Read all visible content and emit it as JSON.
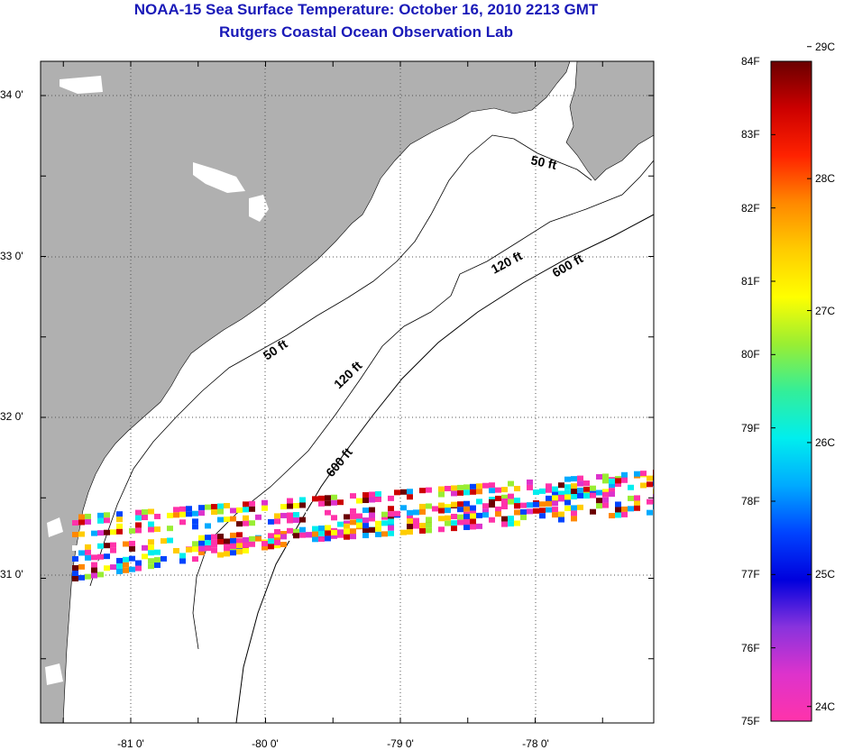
{
  "title": "NOAA-15 Sea Surface Temperature:  October 16, 2010 2213 GMT",
  "subtitle": "Rutgers Coastal Ocean Observation Lab",
  "colors": {
    "land": "#b0b0b0",
    "ocean": "#ffffff",
    "title_text": "#1a1ab8",
    "contour": "#000000"
  },
  "map": {
    "lat_ticks": [
      {
        "value": 34.0,
        "label": "34 0'"
      },
      {
        "value": 33.0,
        "label": "33 0'"
      },
      {
        "value": 32.0,
        "label": "32 0'"
      },
      {
        "value": 31.0,
        "label": "31 0'"
      }
    ],
    "lon_ticks": [
      {
        "value": -81.0,
        "label": "-81 0'"
      },
      {
        "value": -80.0,
        "label": "-80 0'"
      },
      {
        "value": -79.0,
        "label": "-79 0'"
      },
      {
        "value": -78.0,
        "label": "-78 0'"
      }
    ],
    "contour_labels": [
      {
        "label": "50 ft",
        "depth_ft": 50,
        "segment": "north"
      },
      {
        "label": "50 ft",
        "depth_ft": 50,
        "segment": "south"
      },
      {
        "label": "120 ft",
        "depth_ft": 120,
        "segment": "north"
      },
      {
        "label": "120 ft",
        "depth_ft": 120,
        "segment": "south"
      },
      {
        "label": "600 ft",
        "depth_ft": 600,
        "segment": "north"
      },
      {
        "label": "600 ft",
        "depth_ft": 600,
        "segment": "south"
      }
    ]
  },
  "colorbar": {
    "fahrenheit": [
      {
        "label": "84F",
        "value": 84
      },
      {
        "label": "83F",
        "value": 83
      },
      {
        "label": "82F",
        "value": 82
      },
      {
        "label": "81F",
        "value": 81
      },
      {
        "label": "80F",
        "value": 80
      },
      {
        "label": "79F",
        "value": 79
      },
      {
        "label": "78F",
        "value": 78
      },
      {
        "label": "77F",
        "value": 77
      },
      {
        "label": "76F",
        "value": 76
      },
      {
        "label": "75F",
        "value": 75
      }
    ],
    "celsius": [
      {
        "label": "29C",
        "value": 29
      },
      {
        "label": "28C",
        "value": 28
      },
      {
        "label": "27C",
        "value": 27
      },
      {
        "label": "26C",
        "value": 26
      },
      {
        "label": "25C",
        "value": 25
      },
      {
        "label": "24C",
        "value": 24
      }
    ],
    "gradient": [
      "#6a0000",
      "#cc0000",
      "#ff2200",
      "#ff8800",
      "#ffcc00",
      "#ffff00",
      "#99ee33",
      "#33ee99",
      "#00eeee",
      "#00aaff",
      "#0044ff",
      "#0000dd",
      "#8833dd",
      "#dd33cc",
      "#ff33aa"
    ]
  }
}
